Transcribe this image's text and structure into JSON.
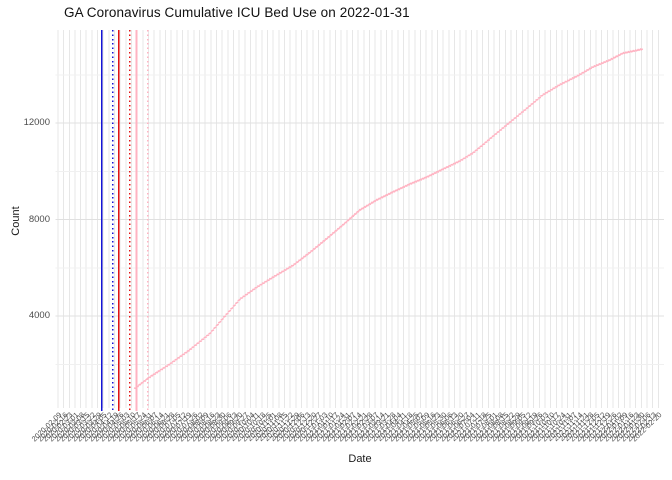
{
  "window": {
    "title": "GA Coronavirus Cumulative ICU Bed Use on 2022-01-31"
  },
  "chart_data": {
    "type": "scatter",
    "title": "GA Coronavirus Cumulative ICU Bed Use on 2022-01-31",
    "xlabel": "Date",
    "ylabel": "Count",
    "grid": true,
    "legend": false,
    "background": "#ffffff",
    "gridline_color": "#e7e7e7",
    "point_color": "#ffb3c2",
    "x_axis": {
      "scale": "date",
      "limits": [
        "2020-02-06",
        "2022-02-27"
      ],
      "breaks": "1 week",
      "tick_labels": [
        "2020-02-09",
        "2020-02-16",
        "2020-02-23",
        "2020-03-01",
        "2020-03-08",
        "2020-03-15",
        "2020-03-22",
        "2020-03-29",
        "2020-04-05",
        "2020-04-12",
        "2020-04-19",
        "2020-04-26",
        "2020-05-03",
        "2020-05-10",
        "2020-05-17",
        "2020-05-24",
        "2020-05-31",
        "2020-06-07",
        "2020-06-14",
        "2020-06-21",
        "2020-06-28",
        "2020-07-05",
        "2020-07-12",
        "2020-07-19",
        "2020-07-26",
        "2020-08-02",
        "2020-08-09",
        "2020-08-16",
        "2020-08-23",
        "2020-08-30",
        "2020-09-06",
        "2020-09-13",
        "2020-09-20",
        "2020-09-27",
        "2020-10-04",
        "2020-10-11",
        "2020-10-18",
        "2020-10-25",
        "2020-11-01",
        "2020-11-08",
        "2020-11-15",
        "2020-11-22",
        "2020-11-29",
        "2020-12-06",
        "2020-12-13",
        "2020-12-20",
        "2020-12-27",
        "2021-01-03",
        "2021-01-10",
        "2021-01-17",
        "2021-01-24",
        "2021-01-31",
        "2021-02-07",
        "2021-02-14",
        "2021-02-21",
        "2021-02-28",
        "2021-03-07",
        "2021-03-14",
        "2021-03-21",
        "2021-03-28",
        "2021-04-04",
        "2021-04-11",
        "2021-04-18",
        "2021-04-25",
        "2021-05-02",
        "2021-05-09",
        "2021-05-16",
        "2021-05-23",
        "2021-05-30",
        "2021-06-06",
        "2021-06-13",
        "2021-06-20",
        "2021-06-27",
        "2021-07-04",
        "2021-07-11",
        "2021-07-18",
        "2021-07-25",
        "2021-08-01",
        "2021-08-08",
        "2021-08-15",
        "2021-08-22",
        "2021-08-29",
        "2021-09-05",
        "2021-09-12",
        "2021-09-19",
        "2021-09-26",
        "2021-10-03",
        "2021-10-10",
        "2021-10-17",
        "2021-10-24",
        "2021-10-31",
        "2021-11-07",
        "2021-11-14",
        "2021-11-21",
        "2021-11-28",
        "2021-12-05",
        "2021-12-12",
        "2021-12-19",
        "2021-12-26",
        "2022-01-02",
        "2022-01-09",
        "2022-01-16",
        "2022-01-23",
        "2022-01-30",
        "2022-02-06",
        "2022-02-13",
        "2022-02-20"
      ]
    },
    "y_axis": {
      "limits": [
        187,
        15855
      ],
      "major_ticks": [
        4000,
        8000,
        12000
      ],
      "minor_gridlines": [
        2000,
        6000,
        10000,
        14000
      ]
    },
    "series": [
      {
        "name": "Cumulative ICU bed use",
        "color": "#ffb3c2",
        "points": [
          [
            "2020-05-14",
            1000
          ],
          [
            "2020-06-02",
            1480
          ],
          [
            "2020-06-26",
            2000
          ],
          [
            "2020-07-21",
            2600
          ],
          [
            "2020-08-15",
            3280
          ],
          [
            "2020-08-31",
            3900
          ],
          [
            "2020-09-21",
            4700
          ],
          [
            "2020-10-12",
            5200
          ],
          [
            "2020-11-01",
            5610
          ],
          [
            "2020-11-26",
            6110
          ],
          [
            "2020-12-17",
            6650
          ],
          [
            "2021-01-07",
            7230
          ],
          [
            "2021-01-26",
            7770
          ],
          [
            "2021-02-16",
            8390
          ],
          [
            "2021-03-09",
            8810
          ],
          [
            "2021-03-29",
            9140
          ],
          [
            "2021-04-19",
            9470
          ],
          [
            "2021-05-10",
            9760
          ],
          [
            "2021-05-30",
            10090
          ],
          [
            "2021-06-20",
            10430
          ],
          [
            "2021-07-06",
            10760
          ],
          [
            "2021-07-18",
            11090
          ],
          [
            "2021-07-31",
            11460
          ],
          [
            "2021-08-21",
            12040
          ],
          [
            "2021-09-11",
            12620
          ],
          [
            "2021-09-30",
            13160
          ],
          [
            "2021-10-21",
            13580
          ],
          [
            "2021-11-12",
            13950
          ],
          [
            "2021-12-01",
            14320
          ],
          [
            "2021-12-22",
            14610
          ],
          [
            "2022-01-07",
            14890
          ],
          [
            "2022-01-31",
            15060
          ]
        ]
      }
    ],
    "reference_lines": [
      {
        "color": "#1414d6",
        "style": "solid",
        "date_est": "2020-04-03"
      },
      {
        "color": "#1414d6",
        "style": "dotted",
        "date_est": "2020-04-17"
      },
      {
        "color": "#e31212",
        "style": "solid",
        "date_est": "2020-04-24"
      },
      {
        "color": "#e31212",
        "style": "dotted",
        "date_est": "2020-05-08"
      },
      {
        "color": "#ffb3c2",
        "style": "solid",
        "date_est": "2020-05-16"
      },
      {
        "color": "#ffb3c2",
        "style": "dotted",
        "date_est": "2020-05-30"
      }
    ]
  }
}
